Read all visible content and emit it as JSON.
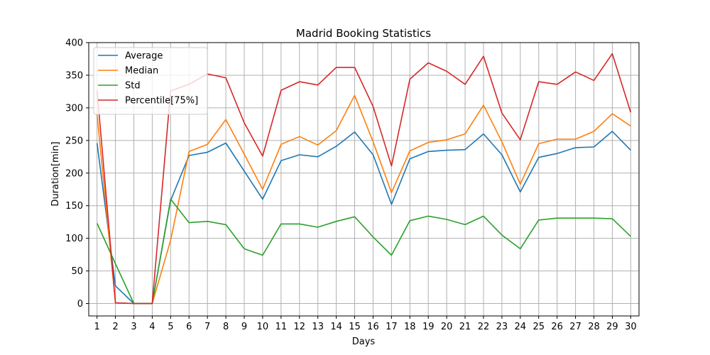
{
  "chart_data": {
    "type": "line",
    "title": "Madrid Booking Statistics",
    "xlabel": "Days",
    "ylabel": "Duration[min]",
    "x": [
      1,
      2,
      3,
      4,
      5,
      6,
      7,
      8,
      9,
      10,
      11,
      12,
      13,
      14,
      15,
      16,
      17,
      18,
      19,
      20,
      21,
      22,
      23,
      24,
      25,
      26,
      27,
      28,
      29,
      30
    ],
    "xlim": [
      0.55,
      30.45
    ],
    "ylim": [
      -19,
      400
    ],
    "yticks": [
      0,
      50,
      100,
      150,
      200,
      250,
      300,
      350,
      400
    ],
    "grid": true,
    "legend_position": "upper-left",
    "series": [
      {
        "name": "Average",
        "color": "#1f77b4",
        "values": [
          246,
          27,
          0,
          0,
          158,
          227,
          232,
          246,
          203,
          160,
          219,
          228,
          225,
          241,
          263,
          228,
          152,
          222,
          233,
          235,
          236,
          260,
          228,
          171,
          224,
          230,
          239,
          240,
          264,
          235
        ]
      },
      {
        "name": "Median",
        "color": "#ff7f0e",
        "values": [
          290,
          1,
          0,
          0,
          97,
          233,
          244,
          282,
          229,
          175,
          244,
          256,
          243,
          265,
          319,
          248,
          170,
          234,
          247,
          251,
          260,
          304,
          248,
          183,
          245,
          252,
          252,
          264,
          291,
          272
        ]
      },
      {
        "name": "Std",
        "color": "#2ca02c",
        "values": [
          123,
          61,
          0,
          0,
          160,
          124,
          126,
          121,
          84,
          74,
          122,
          122,
          117,
          126,
          133,
          102,
          74,
          127,
          134,
          129,
          121,
          134,
          105,
          84,
          128,
          131,
          131,
          131,
          130,
          103
        ]
      },
      {
        "name": "Percentile[75%]",
        "color": "#d62728",
        "values": [
          327,
          1,
          0,
          0,
          326,
          336,
          352,
          346,
          277,
          226,
          327,
          340,
          335,
          362,
          362,
          302,
          211,
          344,
          369,
          356,
          336,
          379,
          292,
          251,
          340,
          336,
          355,
          342,
          383,
          293
        ]
      }
    ]
  }
}
